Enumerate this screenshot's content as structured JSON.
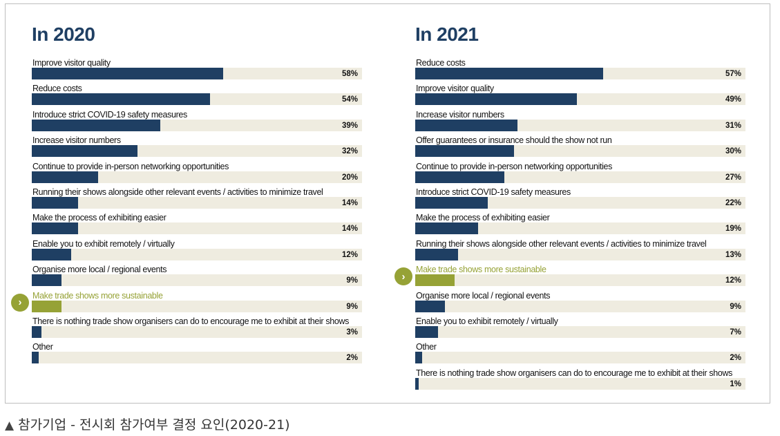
{
  "colors": {
    "bar": "#1f3f63",
    "highlight": "#96a236",
    "track": "#efece0",
    "title": "#1f3f63"
  },
  "icons": {
    "marker": "chevron-right-circle-icon",
    "caption": "triangle-up-icon"
  },
  "marker_glyph": "›",
  "caption": {
    "marker": "▲",
    "text": "참가기업 - 전시회 참가여부 결정 요인(2020-21)"
  },
  "chart_data": [
    {
      "type": "bar",
      "orientation": "horizontal",
      "title": "In 2020",
      "xlim": [
        0,
        100
      ],
      "unit": "%",
      "highlight": "Make trade shows more sustainable",
      "categories": [
        "Improve visitor quality",
        "Reduce costs",
        "Introduce strict COVID-19 safety measures",
        "Increase visitor numbers",
        "Continue to provide in-person networking opportunities",
        "Running their shows alongside other relevant events / activities to minimize travel",
        "Make the process of exhibiting easier",
        "Enable you to exhibit remotely / virtually",
        "Organise more local / regional events",
        "Make trade shows more sustainable",
        "There is nothing trade show organisers can do to encourage me to exhibit at their shows",
        "Other"
      ],
      "values": [
        58,
        54,
        39,
        32,
        20,
        14,
        14,
        12,
        9,
        9,
        3,
        2
      ]
    },
    {
      "type": "bar",
      "orientation": "horizontal",
      "title": "In 2021",
      "xlim": [
        0,
        100
      ],
      "unit": "%",
      "highlight": "Make trade shows more sustainable",
      "categories": [
        "Reduce costs",
        "Improve visitor quality",
        "Increase visitor numbers",
        "Offer guarantees or insurance should the show not run",
        "Continue to provide in-person networking opportunities",
        "Introduce strict COVID-19 safety measures",
        "Make the process of exhibiting easier",
        "Running their shows alongside other relevant events / activities to minimize travel",
        "Make trade shows more sustainable",
        "Organise more local / regional events",
        "Enable you to exhibit remotely / virtually",
        "Other",
        "There is nothing trade show organisers can do to encourage me to exhibit at their shows"
      ],
      "values": [
        57,
        49,
        31,
        30,
        27,
        22,
        19,
        13,
        12,
        9,
        7,
        2,
        1
      ]
    }
  ]
}
